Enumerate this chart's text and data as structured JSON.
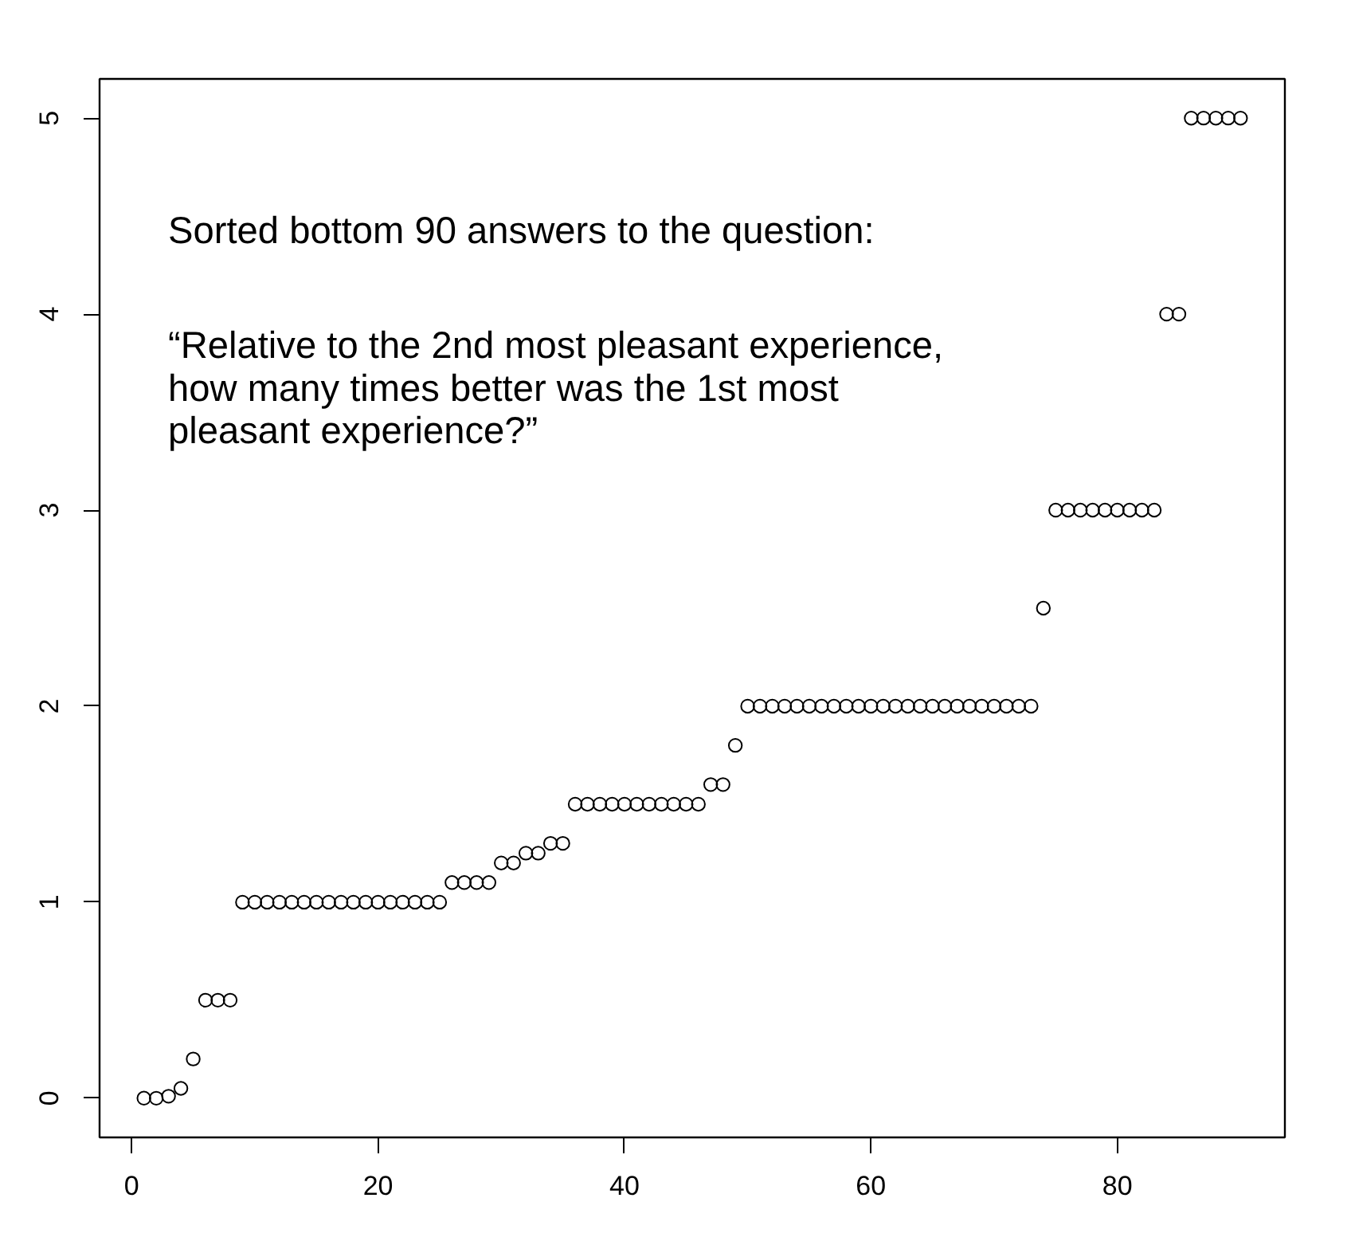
{
  "chart_data": {
    "type": "scatter",
    "color": "#000000",
    "marker": "circle",
    "grid": false,
    "xlim": [
      -2.6,
      93.6
    ],
    "ylim": [
      -0.2,
      5.2
    ],
    "xticks": [
      0,
      20,
      40,
      60,
      80
    ],
    "yticks": [
      0,
      1,
      2,
      3,
      4,
      5
    ],
    "x": [
      1,
      2,
      3,
      4,
      5,
      6,
      7,
      8,
      9,
      10,
      11,
      12,
      13,
      14,
      15,
      16,
      17,
      18,
      19,
      20,
      21,
      22,
      23,
      24,
      25,
      26,
      27,
      28,
      29,
      30,
      31,
      32,
      33,
      34,
      35,
      36,
      37,
      38,
      39,
      40,
      41,
      42,
      43,
      44,
      45,
      46,
      47,
      48,
      49,
      50,
      51,
      52,
      53,
      54,
      55,
      56,
      57,
      58,
      59,
      60,
      61,
      62,
      63,
      64,
      65,
      66,
      67,
      68,
      69,
      70,
      71,
      72,
      73,
      74,
      75,
      76,
      77,
      78,
      79,
      80,
      81,
      82,
      83,
      84,
      85,
      86,
      87,
      88,
      89,
      90
    ],
    "values": [
      0,
      0,
      0.01,
      0.05,
      0.2,
      0.5,
      0.5,
      0.5,
      1,
      1,
      1,
      1,
      1,
      1,
      1,
      1,
      1,
      1,
      1,
      1,
      1,
      1,
      1,
      1,
      1,
      1.1,
      1.1,
      1.1,
      1.1,
      1.2,
      1.2,
      1.25,
      1.25,
      1.3,
      1.3,
      1.5,
      1.5,
      1.5,
      1.5,
      1.5,
      1.5,
      1.5,
      1.5,
      1.5,
      1.5,
      1.5,
      1.6,
      1.6,
      1.8,
      2,
      2,
      2,
      2,
      2,
      2,
      2,
      2,
      2,
      2,
      2,
      2,
      2,
      2,
      2,
      2,
      2,
      2,
      2,
      2,
      2,
      2,
      2,
      2,
      2.5,
      3,
      3,
      3,
      3,
      3,
      3,
      3,
      3,
      3,
      4,
      4,
      5,
      5,
      5,
      5,
      5
    ],
    "annotations": [
      "Sorted bottom 90 answers to the question:",
      "“Relative to the 2nd most pleasant experience,\nhow many times better was the 1st most\npleasant experience?”"
    ]
  }
}
